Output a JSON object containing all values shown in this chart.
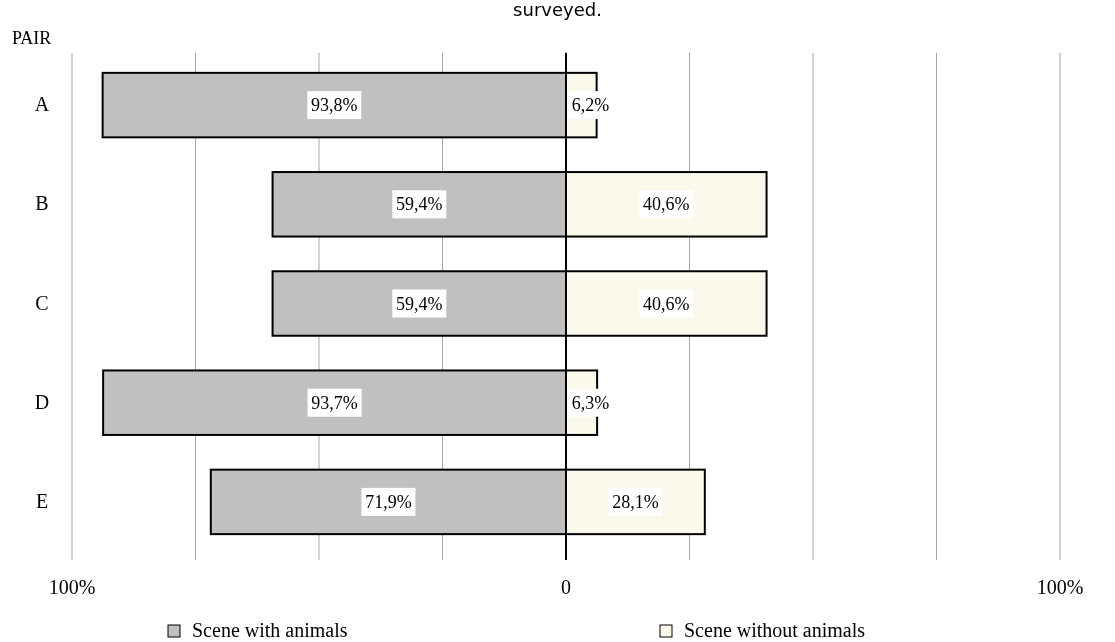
{
  "chart_data": {
    "type": "bar",
    "title": "surveyed.",
    "ylabel": "PAIR",
    "orientation": "horizontal",
    "stacked": true,
    "categories": [
      "A",
      "B",
      "C",
      "D",
      "E"
    ],
    "series": [
      {
        "name": "Scene with animals",
        "color": "#c0c0c0",
        "values": [
          93.8,
          59.4,
          59.4,
          93.7,
          71.9
        ],
        "base": [
          -93.8,
          -59.4,
          -59.4,
          -93.7,
          -71.9
        ],
        "value_labels": [
          "93,8%",
          "59,4%",
          "59,4%",
          "93,7%",
          "71,9%"
        ]
      },
      {
        "name": "Scene without animals",
        "color": "#fbf8ec",
        "values": [
          6.2,
          40.6,
          40.6,
          6.3,
          28.1
        ],
        "value_labels": [
          "6,2%",
          "40,6%",
          "40,6%",
          "6,3%",
          "28,1%"
        ]
      }
    ],
    "xlim": [
      -100,
      100
    ],
    "xticks": [
      {
        "value": -100,
        "label": "100%"
      },
      {
        "value": -75,
        "label": null
      },
      {
        "value": -50,
        "label": null
      },
      {
        "value": -25,
        "label": null
      },
      0,
      {
        "value": 25,
        "label": null
      },
      {
        "value": 50,
        "label": null
      },
      {
        "value": 75,
        "label": null
      },
      {
        "value": 100,
        "label": "100%"
      }
    ],
    "grid": "x",
    "legend": "bottom"
  }
}
